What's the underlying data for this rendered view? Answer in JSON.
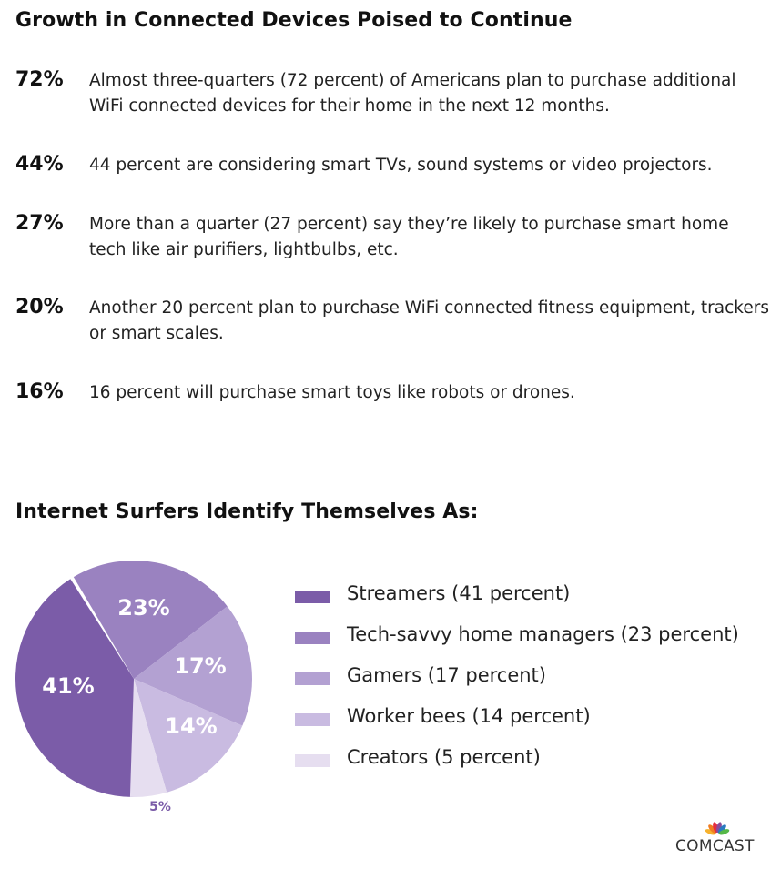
{
  "headline": "Growth in Connected Devices Poised to Continue",
  "stats": [
    {
      "pct": "72%",
      "text": "Almost three-quarters (72 percent) of Americans plan to purchase additional WiFi connected devices for their home in the next 12 months."
    },
    {
      "pct": "44%",
      "text": "44 percent are considering smart TVs, sound systems or video projectors."
    },
    {
      "pct": "27%",
      "text": "More than a quarter (27 percent) say they’re likely to purchase smart home tech like air purifiers, lightbulbs, etc."
    },
    {
      "pct": "20%",
      "text": "Another 20 percent plan to purchase WiFi connected fitness equipment, trackers or smart scales."
    },
    {
      "pct": "16%",
      "text": "16 percent will purchase smart toys like robots or drones."
    }
  ],
  "chart_data": {
    "type": "pie",
    "title": "Internet Surfers Identify Themselves As:",
    "categories": [
      "Streamers",
      "Tech-savvy home managers",
      "Gamers",
      "Worker bees",
      "Creators"
    ],
    "values": [
      41,
      23,
      17,
      14,
      5
    ],
    "slice_labels": [
      "41%",
      "23%",
      "17%",
      "14%",
      "5%"
    ],
    "legend": [
      "Streamers (41 percent)",
      "Tech-savvy home managers (23 percent)",
      "Gamers (17 percent)",
      "Worker bees (14 percent)",
      "Creators (5 percent)"
    ],
    "colors": [
      "#7b5ca8",
      "#9a82c0",
      "#b3a1d2",
      "#c9bbe1",
      "#e6def0"
    ],
    "legend_placement": "right"
  },
  "brand": {
    "name": "COMCAST",
    "logo_icon": "peacock-icon"
  }
}
